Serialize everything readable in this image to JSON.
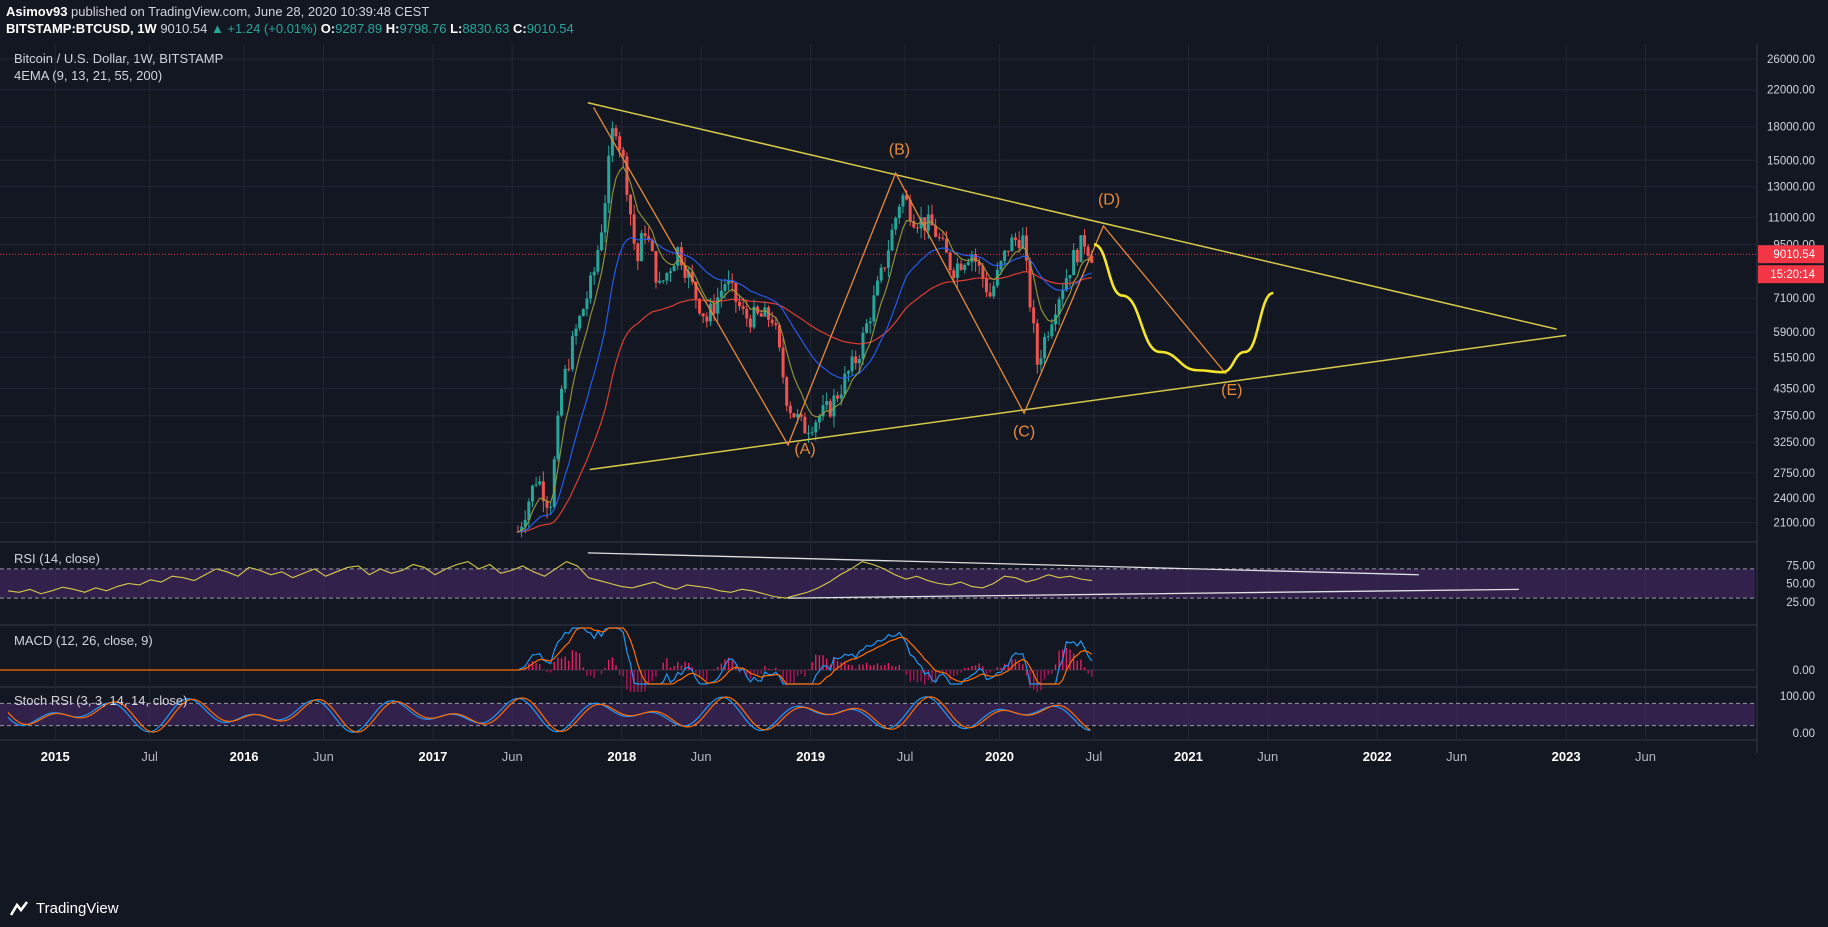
{
  "header": {
    "author": "Asimov93",
    "published": "published on TradingView.com, June 28, 2020 10:39:48 CEST",
    "symbol": "BITSTAMP:BTCUSD, 1W",
    "last": "9010.54",
    "change": "▲ +1.24 (+0.01%)",
    "o_label": "O:",
    "o": "9287.89",
    "h_label": "H:",
    "h": "9798.76",
    "l_label": "L:",
    "l": "8830.63",
    "c_label": "C:",
    "c": "9010.54"
  },
  "chart_data": {
    "type": "candlestick",
    "title": "Bitcoin / U.S. Dollar, 1W, BITSTAMP",
    "indicator": "4EMA (9, 13, 21, 55, 200)",
    "y_scale": "log",
    "y_ticks": [
      2100,
      2400,
      2750,
      3250,
      3750,
      4350,
      5150,
      5900,
      7100,
      9500,
      11000,
      13000,
      15000,
      18000,
      22000,
      26000
    ],
    "y_tick_labels": [
      "2100.00",
      "2400.00",
      "2750.00",
      "3250.00",
      "3750.00",
      "4350.00",
      "5150.00",
      "5900.00",
      "7100.00",
      "9500.00",
      "11000.00",
      "13000.00",
      "15000.00",
      "18000.00",
      "22000.00",
      "26000.00"
    ],
    "last_price": 9010.54,
    "last_price_label": "9010.54",
    "countdown_label": "15:20:14",
    "x_ticks": [
      {
        "t": 2015.0,
        "label": "2015",
        "major": true
      },
      {
        "t": 2015.5,
        "label": "Jul",
        "major": false
      },
      {
        "t": 2016.0,
        "label": "2016",
        "major": true
      },
      {
        "t": 2016.42,
        "label": "Jun",
        "major": false
      },
      {
        "t": 2017.0,
        "label": "2017",
        "major": true
      },
      {
        "t": 2017.42,
        "label": "Jun",
        "major": false
      },
      {
        "t": 2018.0,
        "label": "2018",
        "major": true
      },
      {
        "t": 2018.42,
        "label": "Jun",
        "major": false
      },
      {
        "t": 2019.0,
        "label": "2019",
        "major": true
      },
      {
        "t": 2019.5,
        "label": "Jul",
        "major": false
      },
      {
        "t": 2020.0,
        "label": "2020",
        "major": true
      },
      {
        "t": 2020.5,
        "label": "Jul",
        "major": false
      },
      {
        "t": 2021.0,
        "label": "2021",
        "major": true
      },
      {
        "t": 2021.42,
        "label": "Jun",
        "major": false
      },
      {
        "t": 2022.0,
        "label": "2022",
        "major": true
      },
      {
        "t": 2022.42,
        "label": "Jun",
        "major": false
      },
      {
        "t": 2023.0,
        "label": "2023",
        "major": true
      },
      {
        "t": 2023.42,
        "label": "Jun",
        "major": false
      }
    ],
    "price_path": [
      [
        2017.45,
        2000
      ],
      [
        2017.55,
        2700
      ],
      [
        2017.62,
        2300
      ],
      [
        2017.68,
        4300
      ],
      [
        2017.75,
        5800
      ],
      [
        2017.85,
        8000
      ],
      [
        2017.9,
        11000
      ],
      [
        2017.96,
        19000
      ],
      [
        2018.02,
        14000
      ],
      [
        2018.08,
        8500
      ],
      [
        2018.12,
        10500
      ],
      [
        2018.2,
        7500
      ],
      [
        2018.3,
        9300
      ],
      [
        2018.38,
        7400
      ],
      [
        2018.45,
        6300
      ],
      [
        2018.55,
        7800
      ],
      [
        2018.65,
        6400
      ],
      [
        2018.8,
        6400
      ],
      [
        2018.88,
        4000
      ],
      [
        2018.96,
        3500
      ],
      [
        2019.1,
        3900
      ],
      [
        2019.25,
        5200
      ],
      [
        2019.38,
        8200
      ],
      [
        2019.48,
        12500
      ],
      [
        2019.55,
        11000
      ],
      [
        2019.65,
        10400
      ],
      [
        2019.75,
        8300
      ],
      [
        2019.85,
        9200
      ],
      [
        2019.95,
        7200
      ],
      [
        2020.05,
        9500
      ],
      [
        2020.12,
        10000
      ],
      [
        2020.2,
        5000
      ],
      [
        2020.3,
        7000
      ],
      [
        2020.4,
        9000
      ],
      [
        2020.45,
        9700
      ],
      [
        2020.49,
        9010
      ]
    ],
    "projection": {
      "name": "projection",
      "points": [
        [
          2020.5,
          9500
        ],
        [
          2020.65,
          7200
        ],
        [
          2020.85,
          5300
        ],
        [
          2021.05,
          4800
        ],
        [
          2021.18,
          4750
        ],
        [
          2021.3,
          5300
        ],
        [
          2021.45,
          7300
        ]
      ]
    },
    "trendlines": [
      {
        "from": [
          2017.82,
          20500
        ],
        "to": [
          2022.95,
          6000
        ]
      },
      {
        "from": [
          2017.83,
          2800
        ],
        "to": [
          2023.0,
          5800
        ]
      }
    ],
    "wave": {
      "points": [
        [
          2017.85,
          20000
        ],
        [
          2018.88,
          3200
        ],
        [
          2019.45,
          14000
        ],
        [
          2020.13,
          3800
        ],
        [
          2020.55,
          10500
        ],
        [
          2021.2,
          4700
        ]
      ],
      "labels": [
        "(A)",
        "(B)",
        "(C)",
        "(D)",
        "(E)"
      ],
      "label_points": [
        [
          2018.97,
          3050
        ],
        [
          2019.47,
          15500
        ],
        [
          2020.13,
          3350
        ],
        [
          2020.58,
          11800
        ],
        [
          2021.23,
          4200
        ]
      ]
    },
    "ema": [
      {
        "name": "EMA 9",
        "color": "#f44336",
        "offset": 0.03
      },
      {
        "name": "EMA 21",
        "color": "#2962ff",
        "offset": 0.08
      },
      {
        "name": "EMA 55",
        "color": "#9c9c3c",
        "offset": 0.25
      }
    ],
    "rsi": {
      "label": "RSI (14, close)",
      "ticks": [
        25,
        50,
        75
      ],
      "tick_labels": [
        "25.00",
        "50.00",
        "75.00"
      ],
      "upper": 70,
      "lower": 30,
      "values": [
        40,
        38,
        42,
        36,
        40,
        45,
        42,
        38,
        44,
        40,
        46,
        50,
        48,
        55,
        52,
        60,
        58,
        54,
        62,
        70,
        66,
        60,
        72,
        68,
        62,
        66,
        58,
        64,
        70,
        60,
        66,
        72,
        74,
        62,
        70,
        64,
        68,
        76,
        72,
        62,
        70,
        76,
        80,
        70,
        76,
        64,
        68,
        74,
        66,
        60,
        70,
        80,
        74,
        58,
        54,
        50,
        46,
        44,
        48,
        52,
        46,
        42,
        48,
        46,
        44,
        40,
        38,
        42,
        40,
        36,
        32,
        30,
        34,
        38,
        44,
        52,
        62,
        70,
        80,
        76,
        70,
        62,
        56,
        60,
        54,
        50,
        48,
        52,
        46,
        44,
        50,
        60,
        58,
        52,
        56,
        62,
        58,
        60,
        56,
        54
      ],
      "trendlines": [
        {
          "from": [
            2017.82,
            92
          ],
          "to": [
            2022.22,
            62
          ]
        },
        {
          "from": [
            2018.88,
            30
          ],
          "to": [
            2022.75,
            42
          ]
        }
      ]
    },
    "macd": {
      "label": "MACD (12, 26, close, 9)",
      "tick_label": "0.00"
    },
    "stoch": {
      "label": "Stoch RSI (3, 3, 14, 14, close)",
      "ticks": [
        0,
        100
      ],
      "tick_labels": [
        "0.00",
        "100.00"
      ],
      "upper": 80,
      "lower": 20
    },
    "colors": {
      "bull": "#26a69a",
      "bear": "#ef5350",
      "trend": "#d6c94a",
      "wave": "#e8893a",
      "projection": "#f5e52a",
      "last_price": "#f23645",
      "rsi": "#d6c94a",
      "macd": "#2196f3",
      "signal": "#ff6d00",
      "band": "#4a2a6e"
    },
    "seed": 7
  },
  "footer": {
    "brand": "TradingView"
  }
}
